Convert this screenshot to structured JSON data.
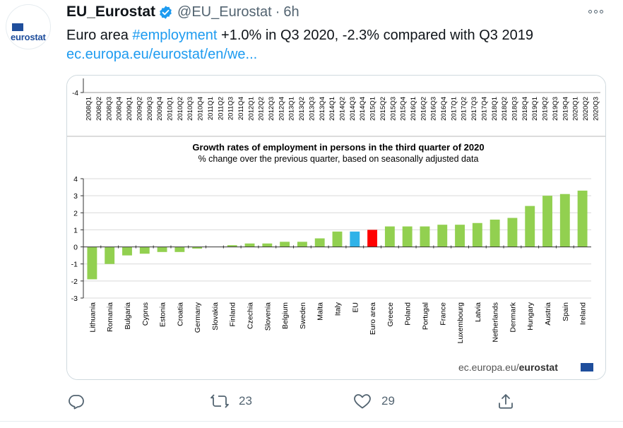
{
  "tweet": {
    "display_name": "EU_Eurostat",
    "handle": "@EU_Eurostat",
    "separator": "·",
    "time": "6h",
    "avatar_logo": "eurostat",
    "text_before": "Euro area ",
    "hashtag": "#employment",
    "text_after": " +1.0% in Q3 2020, -2.3% compared with Q3 2019",
    "link": "ec.europa.eu/eurostat/en/we...",
    "icons": {
      "verified": "verified-badge-icon",
      "more": "more-options-icon"
    }
  },
  "actions": {
    "reply_icon": "reply-icon",
    "retweet_icon": "retweet-icon",
    "retweet_count": "23",
    "like_icon": "heart-icon",
    "like_count": "29",
    "share_icon": "share-icon"
  },
  "colors": {
    "bar_green": "#92d050",
    "bar_blue": "#2fb2e8",
    "bar_red": "#ff0000",
    "link_blue": "#1d9bf0",
    "eurostat_blue": "#1f4e9c"
  },
  "chart_data": [
    {
      "type": "line",
      "y_tick_visible": "-4",
      "categories": [
        "2008Q1",
        "2008Q2",
        "2008Q3",
        "2008Q4",
        "2009Q1",
        "2009Q2",
        "2009Q3",
        "2009Q4",
        "2010Q1",
        "2010Q2",
        "2010Q3",
        "2010Q4",
        "2011Q1",
        "2011Q2",
        "2011Q3",
        "2011Q4",
        "2012Q1",
        "2012Q2",
        "2012Q3",
        "2012Q4",
        "2013Q1",
        "2013Q2",
        "2013Q3",
        "2013Q4",
        "2014Q1",
        "2014Q2",
        "2014Q3",
        "2014Q4",
        "2015Q1",
        "2015Q2",
        "2015Q3",
        "2015Q4",
        "2016Q1",
        "2016Q2",
        "2016Q3",
        "2016Q4",
        "2017Q1",
        "2017Q2",
        "2017Q3",
        "2017Q4",
        "2018Q1",
        "2018Q2",
        "2018Q3",
        "2018Q4",
        "2019Q1",
        "2019Q2",
        "2019Q3",
        "2019Q4",
        "2020Q1",
        "2020Q2",
        "2020Q3"
      ]
    },
    {
      "type": "bar",
      "title": "Growth rates of employment in persons  in the third quarter of 2020",
      "subtitle": "% change over the previous  quarter, based on seasonally adjusted data",
      "categories": [
        "Lithuania",
        "Romania",
        "Bulgaria",
        "Cyprus",
        "Estonia",
        "Croatia",
        "Germany",
        "Slovakia",
        "Finland",
        "Czechia",
        "Slovenia",
        "Belgium",
        "Sweden",
        "Malta",
        "Italy",
        "EU",
        "Euro area",
        "Greece",
        "Poland",
        "Portugal",
        "France",
        "Luxembourg",
        "Latvia",
        "Netherlands",
        "Denmark",
        "Hungary",
        "Austria",
        "Spain",
        "Ireland"
      ],
      "values": [
        -1.9,
        -1.0,
        -0.5,
        -0.4,
        -0.3,
        -0.3,
        -0.1,
        0.0,
        0.1,
        0.2,
        0.2,
        0.3,
        0.3,
        0.5,
        0.9,
        0.9,
        1.0,
        1.2,
        1.2,
        1.2,
        1.3,
        1.3,
        1.4,
        1.6,
        1.7,
        2.4,
        3.0,
        3.1,
        3.3
      ],
      "highlight": {
        "EU": "#2fb2e8",
        "Euro area": "#ff0000"
      },
      "yticks": [
        "4",
        "3",
        "2",
        "1",
        "0",
        "-1",
        "-2",
        "-3"
      ],
      "ylim": [
        -3,
        4
      ],
      "grid": true,
      "source": "ec.europa.eu/",
      "source_brand": "eurostat"
    }
  ]
}
